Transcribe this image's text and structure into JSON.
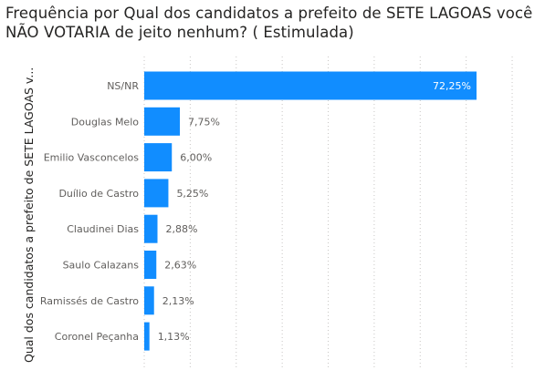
{
  "chart_data": {
    "type": "bar",
    "orientation": "horizontal",
    "title": "Frequência por Qual dos candidatos a prefeito de SETE LAGOAS você NÃO VOTARIA de jeito nenhum? ( Estimulada)",
    "ylabel": "Qual dos candidatos a prefeito de SETE LAGOAS v...",
    "xlabel": "",
    "categories": [
      "NS/NR",
      "Douglas Melo",
      "Emilio Vasconcelos",
      "Duílio de Castro",
      "Claudinei Dias",
      "Saulo Calazans",
      "Ramissés de Castro",
      "Coronel Peçanha"
    ],
    "values": [
      72.25,
      7.75,
      6.0,
      5.25,
      2.88,
      2.63,
      2.13,
      1.13
    ],
    "value_labels": [
      "72,25%",
      "7,75%",
      "6,00%",
      "5,25%",
      "2,88%",
      "2,63%",
      "2,13%",
      "1,13%"
    ],
    "xlim": [
      0,
      80
    ],
    "grid": true,
    "bar_color": "#118DFF"
  }
}
